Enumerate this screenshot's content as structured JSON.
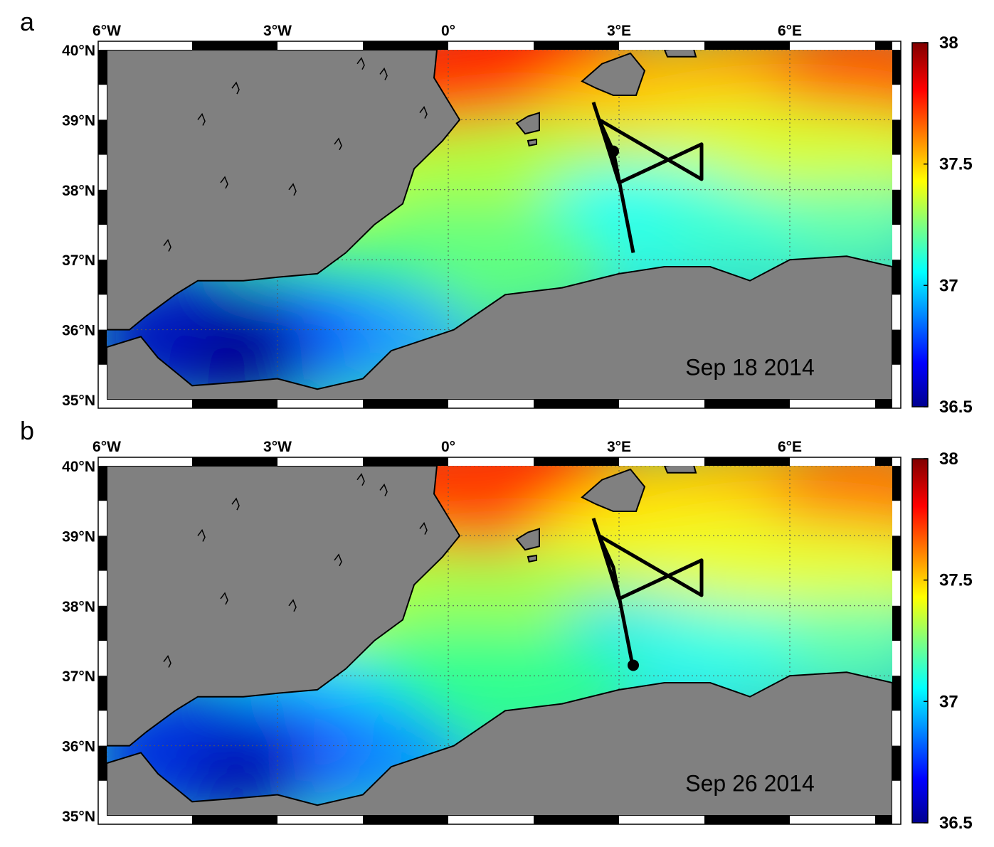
{
  "panels": [
    {
      "letter": "a",
      "date_label": "Sep 18 2014",
      "marker_position": {
        "lon": 2.9,
        "lat": 38.55
      }
    },
    {
      "letter": "b",
      "date_label": "Sep 26 2014",
      "marker_position": {
        "lon": 3.25,
        "lat": 37.15
      }
    }
  ],
  "map": {
    "lon_range": [
      -6,
      7.8
    ],
    "lat_range": [
      35,
      40
    ],
    "lon_ticks": [
      {
        "value": -6,
        "label": "6°W"
      },
      {
        "value": -3,
        "label": "3°W"
      },
      {
        "value": 0,
        "label": "0°"
      },
      {
        "value": 3,
        "label": "3°E"
      },
      {
        "value": 6,
        "label": "6°E"
      }
    ],
    "lat_ticks": [
      {
        "value": 40,
        "label": "40°N"
      },
      {
        "value": 39,
        "label": "39°N"
      },
      {
        "value": 38,
        "label": "38°N"
      },
      {
        "value": 37,
        "label": "37°N"
      },
      {
        "value": 36,
        "label": "36°N"
      },
      {
        "value": 35,
        "label": "35°N"
      }
    ],
    "land_color": "#808080",
    "grid": "dotted"
  },
  "colorbar": {
    "min": 36.5,
    "max": 38,
    "ticks": [
      "38",
      "37.5",
      "37",
      "36.5"
    ],
    "colormap": "jet"
  },
  "track": {
    "points": [
      {
        "lon": 2.55,
        "lat": 39.25
      },
      {
        "lon": 2.65,
        "lat": 39.0
      },
      {
        "lon": 4.45,
        "lat": 38.15
      },
      {
        "lon": 4.45,
        "lat": 38.65
      },
      {
        "lon": 3.0,
        "lat": 38.1
      },
      {
        "lon": 2.65,
        "lat": 39.0
      },
      {
        "lon": 2.9,
        "lat": 38.55
      },
      {
        "lon": 3.25,
        "lat": 37.1
      }
    ]
  }
}
